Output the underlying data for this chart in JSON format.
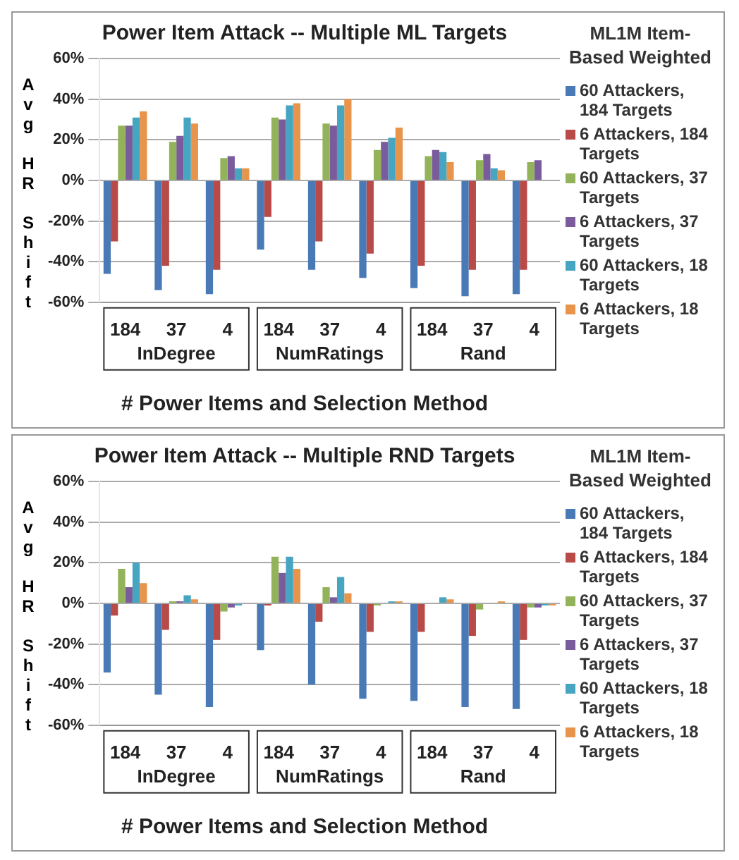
{
  "chart_data": [
    {
      "type": "bar",
      "title": "Power Item Attack -- Multiple ML Targets",
      "xlabel": "# Power Items and Selection Method",
      "ylabel": "Avg HR Shift",
      "legend_title": "ML1M Item-Based Weighted",
      "legend": "right",
      "grid": "y",
      "categories": [
        "184",
        "37",
        "4",
        "184",
        "37",
        "4",
        "184",
        "37",
        "4"
      ],
      "annotations": [
        "InDegree",
        "NumRatings",
        "Rand"
      ],
      "ylim": [
        -60,
        60
      ],
      "yticks": [
        {
          "value": -60,
          "label": "-60%"
        },
        {
          "value": -40,
          "label": "-40%"
        },
        {
          "value": -20,
          "label": "-20%"
        },
        {
          "value": 0,
          "label": "0%"
        },
        {
          "value": 20,
          "label": "20%"
        },
        {
          "value": 40,
          "label": "40%"
        },
        {
          "value": 60,
          "label": "60%"
        }
      ],
      "series": [
        {
          "name": "60 Attackers, 184 Targets",
          "color": "#4a7ab5",
          "values": [
            -46,
            -54,
            -56,
            -34,
            -44,
            -48,
            -53,
            -57,
            -56
          ]
        },
        {
          "name": "6 Attackers, 184 Targets",
          "color": "#b84a47",
          "values": [
            -30,
            -42,
            -44,
            -18,
            -30,
            -36,
            -42,
            -44,
            -44
          ]
        },
        {
          "name": "60 Attackers, 37 Targets",
          "color": "#93b35a",
          "values": [
            27,
            19,
            11,
            31,
            28,
            15,
            12,
            10,
            9
          ]
        },
        {
          "name": "6 Attackers, 37 Targets",
          "color": "#7a5c9c",
          "values": [
            27,
            22,
            12,
            30,
            27,
            19,
            15,
            13,
            10
          ]
        },
        {
          "name": "60 Attackers, 18 Targets",
          "color": "#46a5c0",
          "values": [
            31,
            31,
            6,
            37,
            37,
            21,
            14,
            6,
            null
          ]
        },
        {
          "name": "6 Attackers, 18 Targets",
          "color": "#e8944a",
          "values": [
            34,
            28,
            6,
            38,
            40,
            26,
            9,
            5,
            null
          ]
        }
      ]
    },
    {
      "type": "bar",
      "title": "Power Item Attack -- Multiple RND Targets",
      "xlabel": "# Power Items and Selection Method",
      "ylabel": "Avg HR Shift",
      "legend_title": "ML1M Item-Based Weighted",
      "legend": "right",
      "grid": "y",
      "categories": [
        "184",
        "37",
        "4",
        "184",
        "37",
        "4",
        "184",
        "37",
        "4"
      ],
      "annotations": [
        "InDegree",
        "NumRatings",
        "Rand"
      ],
      "ylim": [
        -60,
        60
      ],
      "yticks": [
        {
          "value": -60,
          "label": "-60%"
        },
        {
          "value": -40,
          "label": "-40%"
        },
        {
          "value": -20,
          "label": "-20%"
        },
        {
          "value": 0,
          "label": "0%"
        },
        {
          "value": 20,
          "label": "20%"
        },
        {
          "value": 40,
          "label": "40%"
        },
        {
          "value": 60,
          "label": "60%"
        }
      ],
      "series": [
        {
          "name": "60 Attackers, 184 Targets",
          "color": "#4a7ab5",
          "values": [
            -34,
            -45,
            -51,
            -23,
            -40,
            -47,
            -48,
            -51,
            -52
          ]
        },
        {
          "name": "6 Attackers, 184 Targets",
          "color": "#b84a47",
          "values": [
            -6,
            -13,
            -18,
            -1,
            -9,
            -14,
            -14,
            -16,
            -18
          ]
        },
        {
          "name": "60 Attackers, 37 Targets",
          "color": "#93b35a",
          "values": [
            17,
            1,
            -4,
            23,
            8,
            -1,
            null,
            -3,
            -2
          ]
        },
        {
          "name": "6 Attackers, 37 Targets",
          "color": "#7a5c9c",
          "values": [
            8,
            1,
            -2,
            15,
            3,
            null,
            null,
            null,
            -2
          ]
        },
        {
          "name": "60 Attackers, 18 Targets",
          "color": "#46a5c0",
          "values": [
            20,
            4,
            -1,
            23,
            13,
            1,
            3,
            null,
            -1
          ]
        },
        {
          "name": "6 Attackers, 18 Targets",
          "color": "#e8944a",
          "values": [
            10,
            2,
            null,
            17,
            5,
            1,
            2,
            1,
            -1
          ]
        }
      ]
    }
  ]
}
